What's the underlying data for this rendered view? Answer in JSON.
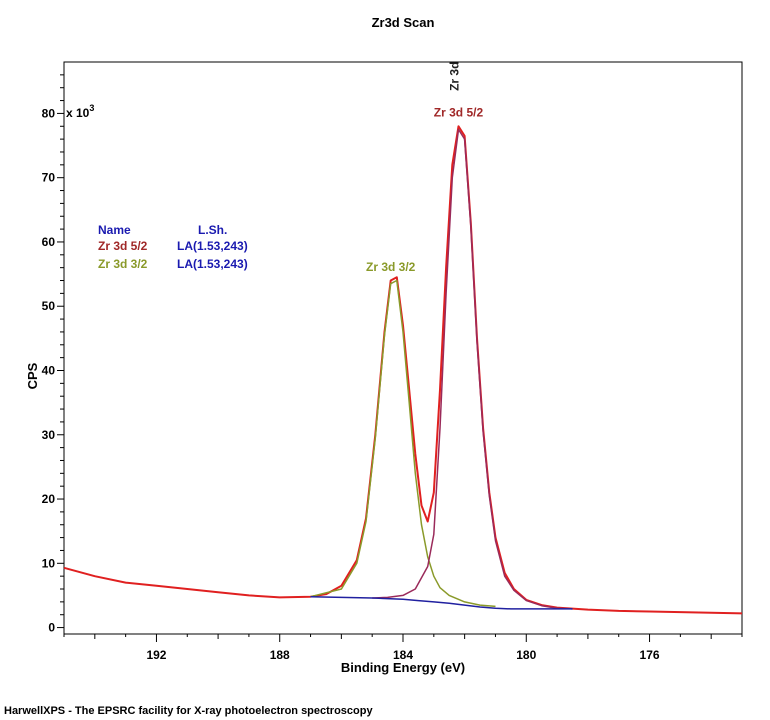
{
  "chart_data": {
    "type": "line",
    "title": "Zr3d Scan",
    "xlabel": "Binding Energy (eV)",
    "ylabel": "CPS",
    "y_multiplier": "x 10",
    "y_multiplier_exp": "3",
    "xlim": [
      195,
      173
    ],
    "ylim": [
      -1,
      88
    ],
    "x_reversed": true,
    "x_ticks": [
      192,
      188,
      184,
      180,
      176
    ],
    "x_tick_labels": [
      "192",
      "188",
      "184",
      "180",
      "176"
    ],
    "y_ticks": [
      0,
      10,
      20,
      30,
      40,
      50,
      60,
      70,
      80
    ],
    "y_tick_labels": [
      "0",
      "10",
      "20",
      "30",
      "40",
      "50",
      "60",
      "70",
      "80"
    ],
    "grid": false,
    "series": [
      {
        "color": "#e02020",
        "x": [
          195,
          194,
          193,
          192,
          191,
          190,
          189,
          188,
          187,
          186.5,
          186,
          185.5,
          185.2,
          184.9,
          184.6,
          184.4,
          184.2,
          184.0,
          183.8,
          183.6,
          183.4,
          183.2,
          183.0,
          182.8,
          182.6,
          182.4,
          182.2,
          182.0,
          181.8,
          181.6,
          181.4,
          181.2,
          181.0,
          180.7,
          180.4,
          180.0,
          179.5,
          179.0,
          178.0,
          177.0,
          176.0,
          175.0,
          174.0,
          173.0
        ],
        "values": [
          9.3,
          8.0,
          7.0,
          6.5,
          6.0,
          5.5,
          5.0,
          4.7,
          4.8,
          5.2,
          6.5,
          10.5,
          17.0,
          30.0,
          46.0,
          54.0,
          54.5,
          47.0,
          37.0,
          27.0,
          19.0,
          16.5,
          21.0,
          37.0,
          56.0,
          72.0,
          78.0,
          76.5,
          63.0,
          45.0,
          31.0,
          21.0,
          14.0,
          8.5,
          6.0,
          4.3,
          3.5,
          3.1,
          2.8,
          2.6,
          2.5,
          2.4,
          2.3,
          2.2
        ]
      },
      {
        "color": "#8a9a2a",
        "x": [
          187,
          186,
          185.5,
          185.2,
          184.9,
          184.6,
          184.4,
          184.2,
          184.0,
          183.8,
          183.6,
          183.4,
          183.2,
          183.0,
          182.8,
          182.5,
          182.0,
          181.5,
          181.0
        ],
        "values": [
          4.8,
          6.0,
          10.0,
          16.5,
          29.5,
          45.5,
          53.5,
          54.0,
          46.0,
          35.0,
          24.0,
          16.0,
          11.0,
          8.0,
          6.2,
          5.0,
          4.0,
          3.5,
          3.3
        ]
      },
      {
        "color": "#9a2a5a",
        "x": [
          185,
          184.5,
          184.0,
          183.6,
          183.2,
          183.0,
          182.8,
          182.6,
          182.4,
          182.2,
          182.0,
          181.8,
          181.6,
          181.4,
          181.2,
          181.0,
          180.7,
          180.4,
          180.0,
          179.5,
          179.0,
          178.5
        ],
        "values": [
          4.6,
          4.7,
          5.0,
          6.0,
          9.5,
          14.5,
          31.0,
          52.0,
          70.0,
          77.5,
          76.0,
          62.5,
          44.5,
          30.5,
          20.5,
          13.5,
          8.0,
          5.8,
          4.2,
          3.4,
          3.0,
          2.9
        ]
      },
      {
        "color": "#2020a0",
        "x": [
          187,
          186,
          185,
          184,
          183.5,
          183,
          182.5,
          182,
          181.5,
          181,
          180.5,
          180,
          179,
          178.5
        ],
        "values": [
          4.8,
          4.7,
          4.6,
          4.4,
          4.2,
          4.0,
          3.8,
          3.5,
          3.2,
          3.0,
          2.9,
          2.9,
          2.9,
          2.9
        ]
      }
    ],
    "annotations": [
      {
        "text": "Zr 3d 3/2",
        "color": "#8a9a2a",
        "x": 184.4,
        "y": 55.5,
        "rotation": 0
      },
      {
        "text": "Zr 3d 5/2",
        "color": "#a02828",
        "x": 182.2,
        "y": 79.5,
        "rotation": 0
      },
      {
        "text": "Zr 3d",
        "color": "#202020",
        "x": 182.2,
        "y": 83.5,
        "rotation": -90
      }
    ],
    "legend": {
      "placement": "top-left",
      "headers": [
        "Name",
        "L.Sh."
      ],
      "header_color": "#1a1ab0",
      "rows": [
        {
          "name": "Zr 3d 5/2",
          "name_color": "#a02828",
          "lsh": "LA(1.53,243)",
          "lsh_color": "#1a1ab0"
        },
        {
          "name": "Zr 3d 3/2",
          "name_color": "#8a9a2a",
          "lsh": "LA(1.53,243)",
          "lsh_color": "#1a1ab0"
        }
      ]
    }
  },
  "footer": "HarwellXPS - The EPSRC facility for X-ray photoelectron spectroscopy"
}
